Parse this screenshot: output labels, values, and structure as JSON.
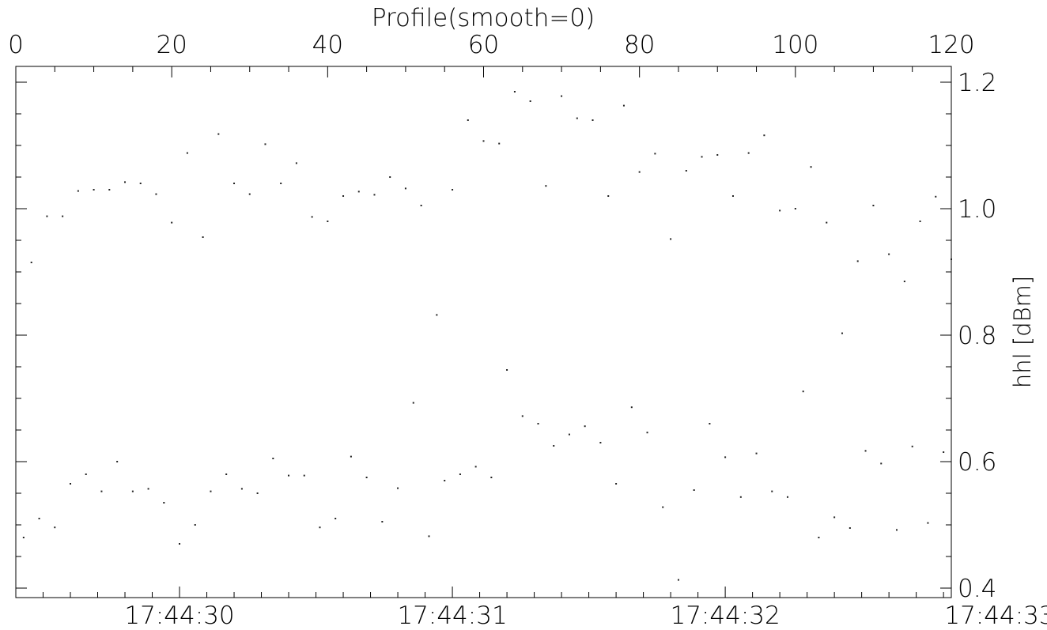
{
  "chart_data": {
    "type": "scatter",
    "title": "Profile(smooth=0)",
    "xlabel": "",
    "ylabel": "hhl [dBm]",
    "xlim": [
      0,
      120
    ],
    "ylim": [
      0.385,
      1.225
    ],
    "grid": false,
    "legend": "none",
    "top_axis": {
      "range": [
        0,
        120
      ],
      "ticks": [
        0,
        20,
        40,
        60,
        80,
        100,
        120
      ],
      "tick_labels": [
        "0",
        "20",
        "40",
        "60",
        "80",
        "100",
        "120"
      ]
    },
    "bottom_axis": {
      "ticks": [
        21,
        56,
        91,
        126
      ],
      "tick_labels": [
        "17:44:30",
        "17:44:31",
        "17:44:32",
        "17:44:33"
      ]
    },
    "right_axis": {
      "ticks": [
        0.4,
        0.6,
        0.8,
        1.0,
        1.2
      ],
      "tick_labels": [
        "0.4",
        "0.6",
        "0.8",
        "1.0",
        "1.2"
      ]
    },
    "series": [
      {
        "color": "#222222",
        "points": [
          [
            1,
            0.48
          ],
          [
            2,
            0.915
          ],
          [
            3,
            0.51
          ],
          [
            4,
            0.988
          ],
          [
            5,
            0.496
          ],
          [
            6,
            0.988
          ],
          [
            7,
            0.565
          ],
          [
            8,
            1.028
          ],
          [
            9,
            0.58
          ],
          [
            10,
            1.03
          ],
          [
            11,
            0.553
          ],
          [
            12,
            1.03
          ],
          [
            13,
            0.6
          ],
          [
            14,
            1.042
          ],
          [
            15,
            0.553
          ],
          [
            16,
            1.04
          ],
          [
            17,
            0.557
          ],
          [
            18,
            1.023
          ],
          [
            19,
            0.535
          ],
          [
            20,
            0.978
          ],
          [
            21,
            0.47
          ],
          [
            22,
            1.088
          ],
          [
            23,
            0.5
          ],
          [
            24,
            0.955
          ],
          [
            25,
            0.553
          ],
          [
            26,
            1.118
          ],
          [
            27,
            0.58
          ],
          [
            28,
            1.04
          ],
          [
            29,
            0.557
          ],
          [
            30,
            1.023
          ],
          [
            31,
            0.55
          ],
          [
            32,
            1.102
          ],
          [
            33,
            0.605
          ],
          [
            34,
            1.04
          ],
          [
            35,
            0.578
          ],
          [
            36,
            1.072
          ],
          [
            37,
            0.578
          ],
          [
            38,
            0.987
          ],
          [
            39,
            0.496
          ],
          [
            40,
            0.98
          ],
          [
            41,
            0.51
          ],
          [
            42,
            1.02
          ],
          [
            43,
            0.608
          ],
          [
            44,
            1.027
          ],
          [
            45,
            0.575
          ],
          [
            46,
            1.022
          ],
          [
            47,
            0.505
          ],
          [
            48,
            1.05
          ],
          [
            49,
            0.558
          ],
          [
            50,
            1.032
          ],
          [
            51,
            0.693
          ],
          [
            52,
            1.005
          ],
          [
            53,
            0.482
          ],
          [
            54,
            0.832
          ],
          [
            55,
            0.57
          ],
          [
            56,
            1.03
          ],
          [
            57,
            0.58
          ],
          [
            58,
            1.14
          ],
          [
            59,
            0.592
          ],
          [
            60,
            1.107
          ],
          [
            61,
            0.575
          ],
          [
            62,
            1.103
          ],
          [
            63,
            0.745
          ],
          [
            64,
            1.185
          ],
          [
            65,
            0.672
          ],
          [
            66,
            1.17
          ],
          [
            67,
            0.66
          ],
          [
            68,
            1.036
          ],
          [
            69,
            0.625
          ],
          [
            70,
            1.178
          ],
          [
            71,
            0.643
          ],
          [
            72,
            1.143
          ],
          [
            73,
            0.656
          ],
          [
            74,
            1.14
          ],
          [
            75,
            0.63
          ],
          [
            76,
            1.02
          ],
          [
            77,
            0.565
          ],
          [
            78,
            1.163
          ],
          [
            79,
            0.686
          ],
          [
            80,
            1.058
          ],
          [
            81,
            0.646
          ],
          [
            82,
            1.087
          ],
          [
            83,
            0.528
          ],
          [
            84,
            0.952
          ],
          [
            85,
            0.413
          ],
          [
            86,
            1.06
          ],
          [
            87,
            0.555
          ],
          [
            88,
            1.082
          ],
          [
            89,
            0.66
          ],
          [
            90,
            1.085
          ],
          [
            91,
            0.607
          ],
          [
            92,
            1.02
          ],
          [
            93,
            0.544
          ],
          [
            94,
            1.088
          ],
          [
            95,
            0.613
          ],
          [
            96,
            1.116
          ],
          [
            97,
            0.553
          ],
          [
            98,
            0.997
          ],
          [
            99,
            0.544
          ],
          [
            100,
            1.0
          ],
          [
            101,
            0.711
          ],
          [
            102,
            1.066
          ],
          [
            103,
            0.48
          ],
          [
            104,
            0.978
          ],
          [
            105,
            0.512
          ],
          [
            106,
            0.803
          ],
          [
            107,
            0.495
          ],
          [
            108,
            0.917
          ],
          [
            109,
            0.617
          ],
          [
            110,
            1.005
          ],
          [
            111,
            0.597
          ],
          [
            112,
            0.928
          ],
          [
            113,
            0.492
          ],
          [
            114,
            0.885
          ],
          [
            115,
            0.624
          ],
          [
            116,
            0.98
          ],
          [
            117,
            0.503
          ],
          [
            118,
            1.019
          ],
          [
            119,
            0.615
          ],
          [
            120,
            0.92
          ]
        ]
      }
    ]
  }
}
